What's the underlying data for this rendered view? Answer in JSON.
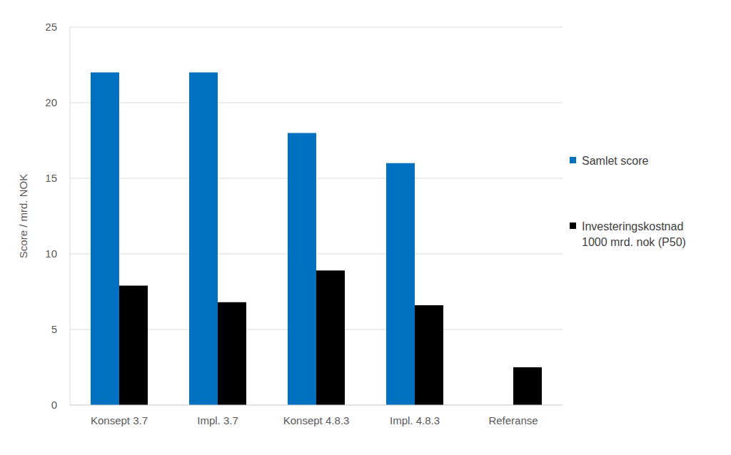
{
  "chart_data": {
    "type": "bar",
    "y_label": "Score / mrd. NOK",
    "categories": [
      "Konsept 3.7",
      "Impl. 3.7",
      "Konsept 4.8.3",
      "Impl. 4.8.3",
      "Referanse"
    ],
    "series": [
      {
        "name": "Samlet score",
        "color": "#0070c0",
        "values": [
          22,
          22,
          18,
          16,
          null
        ]
      },
      {
        "name": "Investeringskostnad 1000 mrd. nok (P50)",
        "color": "#000000",
        "values": [
          7.9,
          6.8,
          8.9,
          6.6,
          2.5
        ]
      }
    ],
    "ylim": [
      0,
      25
    ],
    "yticks": [
      0,
      5,
      10,
      15,
      20,
      25
    ],
    "grid": true,
    "legend": "right"
  }
}
